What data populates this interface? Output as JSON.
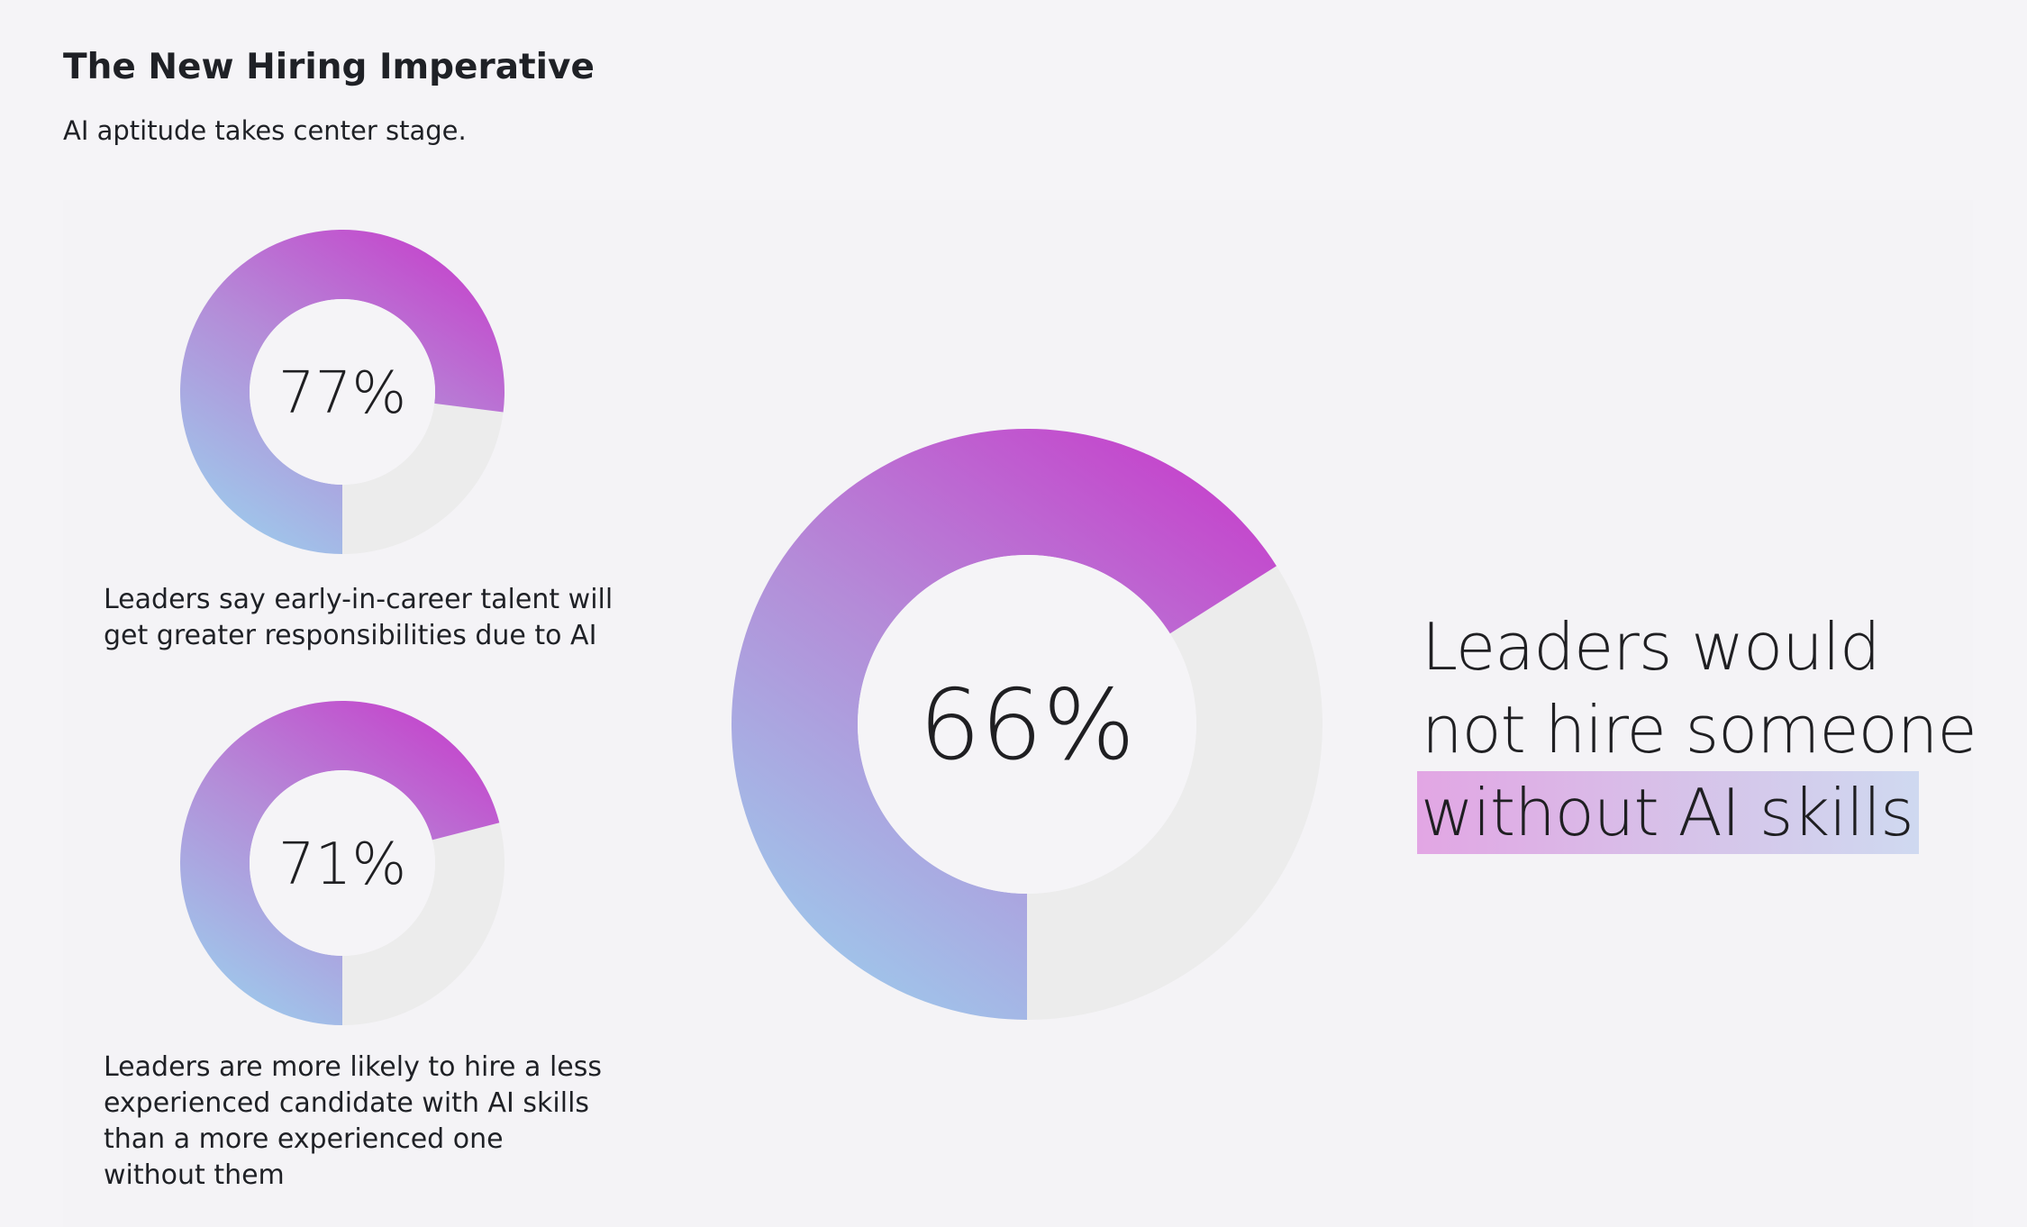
{
  "header": {
    "title": "The New Hiring Imperative",
    "subtitle": "AI aptitude takes center stage."
  },
  "colors": {
    "gradient_start": "#9dcbec",
    "gradient_mid": "#b48cd8",
    "gradient_end": "#c63fcb",
    "remainder": "#ececec",
    "highlight_start": "#e2a6e4",
    "highlight_end": "#cfd9f0"
  },
  "chart_data": [
    {
      "type": "pie",
      "variant": "donut",
      "center_label": "77%",
      "values": [
        77,
        23
      ],
      "caption": "Leaders say early-in-career talent will get greater responsibilities due to AI"
    },
    {
      "type": "pie",
      "variant": "donut",
      "center_label": "71%",
      "values": [
        71,
        29
      ],
      "caption": "Leaders are more likely to hire a less experienced candidate with AI skills than a more experienced one without them"
    },
    {
      "type": "pie",
      "variant": "donut",
      "center_label": "66%",
      "values": [
        66,
        34
      ],
      "caption_lines": [
        "Leaders would",
        "not hire someone",
        "without AI skills"
      ],
      "highlighted_line": "without AI skills"
    }
  ]
}
